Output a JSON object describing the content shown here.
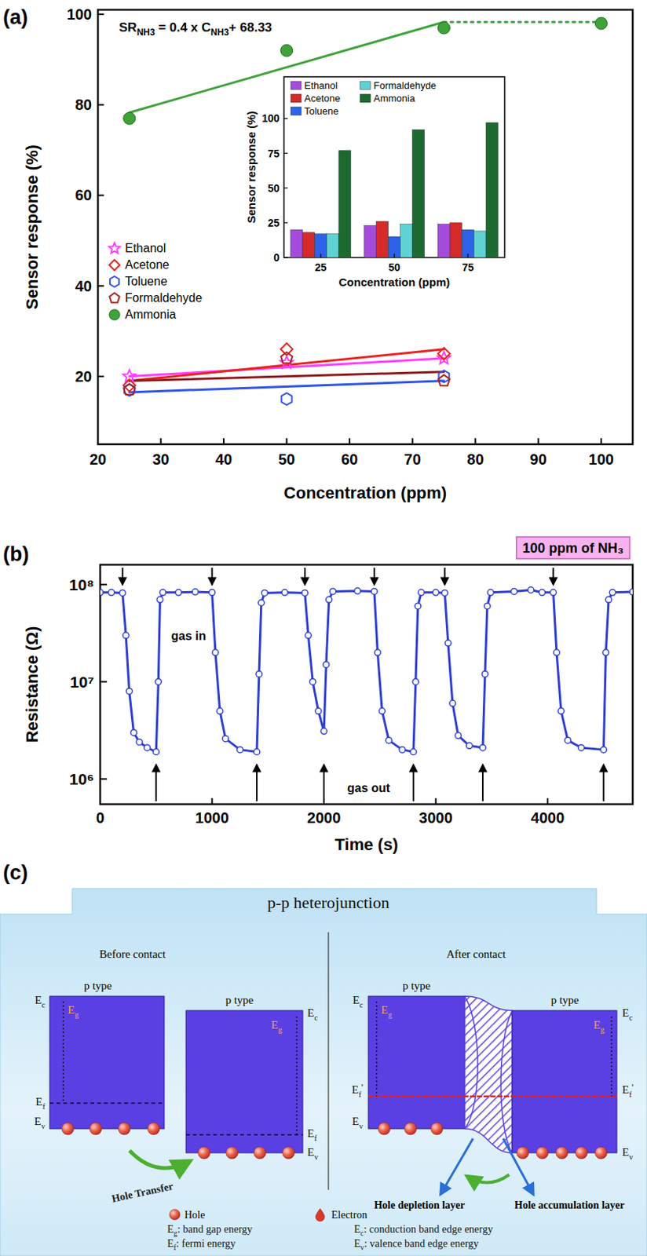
{
  "chart_data": [
    {
      "type": "scatter",
      "panel": "(a)",
      "xlabel": "Concentration (ppm)",
      "ylabel": "Sensor response (%)",
      "annotations": [
        {
          "parts": [
            "SR",
            "NH3",
            " = 0.4 x C",
            "NH3",
            "+ 68.33"
          ]
        }
      ],
      "xlim": [
        20,
        105
      ],
      "xticks": [
        20,
        30,
        40,
        50,
        60,
        70,
        80,
        90,
        100
      ],
      "ylim": [
        5,
        101
      ],
      "yticks": [
        20,
        40,
        60,
        80,
        100
      ],
      "legend": "left",
      "series": [
        {
          "name": "Ethanol",
          "color": "#ff3dff",
          "marker": "star",
          "x": [
            25,
            50,
            75
          ],
          "values": [
            20,
            23,
            24
          ]
        },
        {
          "name": "Acetone",
          "color": "#e8231f",
          "marker": "diamond",
          "x": [
            25,
            50,
            75
          ],
          "values": [
            18,
            26,
            25
          ]
        },
        {
          "name": "Toluene",
          "color": "#2f55e6",
          "marker": "hexagon",
          "x": [
            25,
            50,
            75
          ],
          "values": [
            17,
            15,
            20
          ]
        },
        {
          "name": "Formaldehyde",
          "color": "#b0201c",
          "marker": "pentagon",
          "x": [
            25,
            50,
            75
          ],
          "values": [
            17,
            24,
            19
          ]
        },
        {
          "name": "Ammonia",
          "color": "#3fa33a",
          "marker": "circle",
          "x": [
            25,
            50,
            75,
            100
          ],
          "values": [
            77,
            92,
            97,
            98
          ]
        },
        {
          "type": "line",
          "line_style": "solid",
          "color": "#ff3dff",
          "x": [
            25,
            75
          ],
          "values": [
            20,
            24
          ]
        },
        {
          "type": "line",
          "line_style": "solid",
          "color": "#e8231f",
          "x": [
            25,
            75
          ],
          "values": [
            19,
            26
          ]
        },
        {
          "type": "line",
          "line_style": "solid",
          "color": "#2f55e6",
          "x": [
            25,
            75
          ],
          "values": [
            16.5,
            19
          ]
        },
        {
          "type": "line",
          "line_style": "solid",
          "color": "#8b1a1a",
          "x": [
            25,
            75
          ],
          "values": [
            19,
            21
          ]
        },
        {
          "type": "line",
          "line_style": "solid",
          "color": "#3fa33a",
          "x": [
            25,
            75
          ],
          "values": [
            78.3,
            98.3
          ]
        },
        {
          "type": "line",
          "line_style": "dotted",
          "color": "#3fa33a",
          "x": [
            75,
            100
          ],
          "values": [
            98.3,
            98.3
          ]
        }
      ]
    },
    {
      "type": "bar",
      "categories": [
        "25",
        "50",
        "75"
      ],
      "xlabel": "Concentration (ppm)",
      "ylabel": "Sensor response (%)",
      "ylim": [
        0,
        130
      ],
      "yticks": [
        0,
        25,
        50,
        75,
        100
      ],
      "legend": "top",
      "series": [
        {
          "name": "Ethanol",
          "color": "#a54bdb",
          "values": [
            20,
            23,
            24
          ]
        },
        {
          "name": "Acetone",
          "color": "#d42a2a",
          "values": [
            18,
            26,
            25
          ]
        },
        {
          "name": "Toluene",
          "color": "#2d63e8",
          "values": [
            17,
            15,
            20
          ]
        },
        {
          "name": "Formaldehyde",
          "color": "#5fd3d3",
          "values": [
            17,
            24,
            19
          ]
        },
        {
          "name": "Ammonia",
          "color": "#1d6a30",
          "values": [
            77,
            92,
            97
          ]
        }
      ]
    },
    {
      "type": "line",
      "panel": "(b)",
      "xlabel": "Time (s)",
      "ylabel": "Resistance (Ω)",
      "log": "y",
      "marker": "circle",
      "xlim": [
        0,
        4760
      ],
      "xticks": [
        0,
        1000,
        2000,
        3000,
        4000
      ],
      "ylim": [
        550000,
        160000000
      ],
      "yticks": [
        {
          "value": 1000000,
          "label": "10⁶"
        },
        {
          "value": 10000000,
          "label": "10⁷"
        },
        {
          "value": 100000000,
          "label": "10⁸"
        }
      ],
      "annotations": [
        {
          "text": "100 ppm of NH₃"
        },
        {
          "text": "gas in",
          "x": [
            200,
            1000,
            1830,
            2450,
            3080,
            4050
          ]
        },
        {
          "text": "gas out",
          "x": [
            500,
            1400,
            2000,
            2800,
            3420,
            4500
          ]
        }
      ],
      "series": [
        {
          "color": "#2e3fd0",
          "x": [
            0,
            100,
            200,
            230,
            260,
            300,
            350,
            420,
            500,
            520,
            535,
            560,
            700,
            850,
            1000,
            1030,
            1070,
            1120,
            1250,
            1400,
            1420,
            1440,
            1470,
            1650,
            1830,
            1860,
            1900,
            1950,
            2000,
            2020,
            2045,
            2080,
            2300,
            2450,
            2480,
            2520,
            2580,
            2700,
            2800,
            2820,
            2840,
            2870,
            3000,
            3080,
            3110,
            3150,
            3200,
            3300,
            3420,
            3440,
            3460,
            3490,
            3700,
            3850,
            3950,
            4050,
            4080,
            4120,
            4180,
            4300,
            4500,
            4520,
            4545,
            4580,
            4760
          ],
          "values": [
            83000000,
            83000000,
            82000000,
            30000000,
            8000000,
            3000000,
            2400000,
            2100000,
            1900000,
            10000000,
            70000000,
            83000000,
            83000000,
            84000000,
            83000000,
            20000000,
            5000000,
            2600000,
            2000000,
            1900000,
            12000000,
            65000000,
            82000000,
            83000000,
            82000000,
            30000000,
            10000000,
            5000000,
            3100000,
            15000000,
            70000000,
            85000000,
            86000000,
            85000000,
            20000000,
            5000000,
            2500000,
            2000000,
            1900000,
            10000000,
            60000000,
            83000000,
            83000000,
            82000000,
            25000000,
            6000000,
            2800000,
            2200000,
            2100000,
            12000000,
            60000000,
            83000000,
            85000000,
            88000000,
            83000000,
            83000000,
            20000000,
            5000000,
            2500000,
            2100000,
            2000000,
            20000000,
            70000000,
            83000000,
            84000000
          ]
        }
      ]
    }
  ],
  "diagram": {
    "label": "(c)",
    "title": "p-p heterojunction",
    "before_contact": {
      "heading": "Before contact",
      "semiconductors": [
        "p type",
        "p type"
      ],
      "arrow_label": "Hole Transfer"
    },
    "after_contact": {
      "heading": "After contact",
      "semiconductors": [
        "p type",
        "p type"
      ],
      "layers": [
        "Hole depletion layer",
        "Hole accumulation layer"
      ]
    },
    "symbols": {
      "Eg": {
        "main": "E",
        "sub": "g"
      },
      "Ec": {
        "main": "E",
        "sub": "c"
      },
      "Ef": {
        "main": "E",
        "sub": "f"
      },
      "Ev": {
        "main": "E",
        "sub": "v"
      },
      "Ef_prime": {
        "main": "E",
        "sub": "f",
        "sup": "'"
      }
    },
    "legend": {
      "items": [
        "Hole",
        "Electron"
      ],
      "definitions": [
        {
          "symbol": "Eg",
          "text": ": band gap energy"
        },
        {
          "symbol": "Ec",
          "text": ": conduction band edge energy"
        },
        {
          "symbol": "Ef",
          "text": ": fermi energy"
        },
        {
          "symbol": "Ev",
          "text": ": valence band edge energy"
        }
      ]
    }
  }
}
